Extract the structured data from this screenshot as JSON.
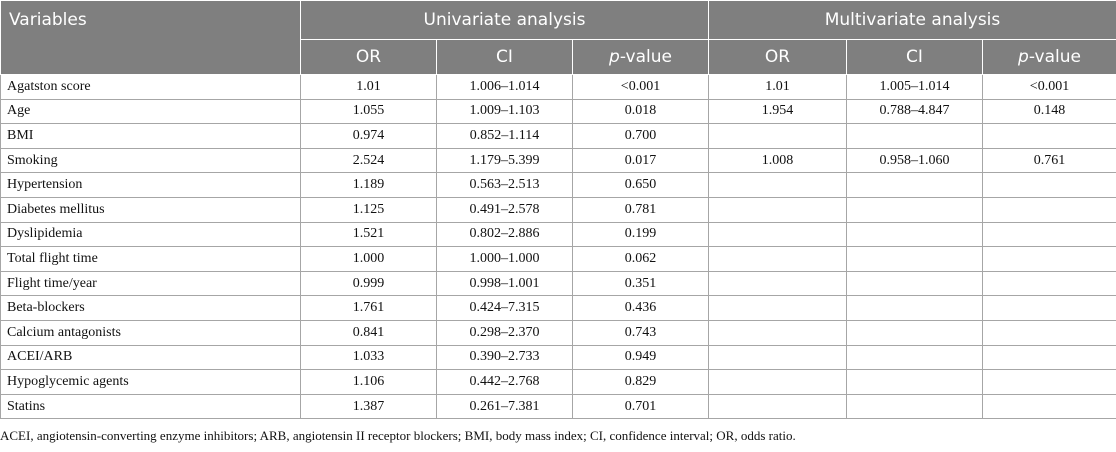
{
  "table": {
    "header": {
      "variables": "Variables",
      "univariate": "Univariate analysis",
      "multivariate": "Multivariate analysis",
      "or": "OR",
      "ci": "CI",
      "p_italic": "p",
      "p_rest": "-value"
    },
    "rows": [
      [
        "Agatston score",
        "1.01",
        "1.006–1.014",
        "<0.001",
        "1.01",
        "1.005–1.014",
        "<0.001"
      ],
      [
        "Age",
        "1.055",
        "1.009–1.103",
        "0.018",
        "1.954",
        "0.788–4.847",
        "0.148"
      ],
      [
        "BMI",
        "0.974",
        "0.852–1.114",
        "0.700",
        "",
        "",
        ""
      ],
      [
        "Smoking",
        "2.524",
        "1.179–5.399",
        "0.017",
        "1.008",
        "0.958–1.060",
        "0.761"
      ],
      [
        "Hypertension",
        "1.189",
        "0.563–2.513",
        "0.650",
        "",
        "",
        ""
      ],
      [
        "Diabetes mellitus",
        "1.125",
        "0.491–2.578",
        "0.781",
        "",
        "",
        ""
      ],
      [
        "Dyslipidemia",
        "1.521",
        "0.802–2.886",
        "0.199",
        "",
        "",
        ""
      ],
      [
        "Total flight time",
        "1.000",
        "1.000–1.000",
        "0.062",
        "",
        "",
        ""
      ],
      [
        "Flight time/year",
        "0.999",
        "0.998–1.001",
        "0.351",
        "",
        "",
        ""
      ],
      [
        "Beta-blockers",
        "1.761",
        "0.424–7.315",
        "0.436",
        "",
        "",
        ""
      ],
      [
        "Calcium antagonists",
        "0.841",
        "0.298–2.370",
        "0.743",
        "",
        "",
        ""
      ],
      [
        "ACEI/ARB",
        "1.033",
        "0.390–2.733",
        "0.949",
        "",
        "",
        ""
      ],
      [
        "Hypoglycemic agents",
        "1.106",
        "0.442–2.768",
        "0.829",
        "",
        "",
        ""
      ],
      [
        "Statins",
        "1.387",
        "0.261–7.381",
        "0.701",
        "",
        "",
        ""
      ]
    ]
  },
  "footnote": "ACEI, angiotensin-converting enzyme inhibitors; ARB, angiotensin II receptor blockers; BMI, body mass index; CI, confidence interval; OR, odds ratio.",
  "colors": {
    "header_bg": "#7f7f7f",
    "header_text": "#ffffff",
    "grid_line": "#a6a6a6"
  }
}
